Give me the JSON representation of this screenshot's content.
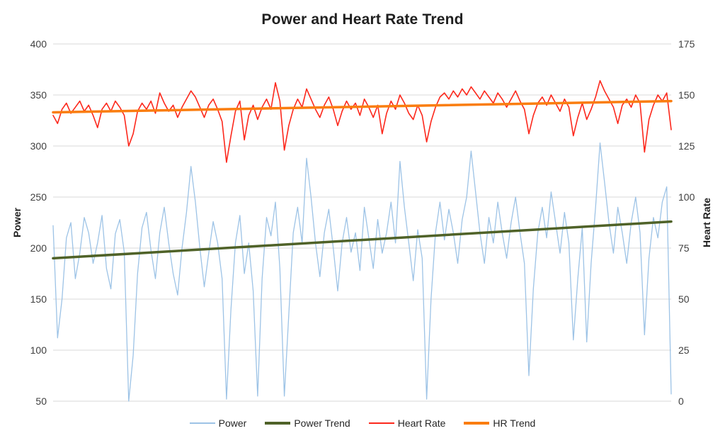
{
  "chart": {
    "title": "Power and Heart Rate Trend"
  },
  "chart_data": {
    "type": "line",
    "title": "Power and Heart Rate Trend",
    "grid": "horizontal",
    "grid_color": "#D9D9D9",
    "background_color": "#FFFFFF",
    "legend_position": "bottom",
    "left_axis": {
      "label": "Power",
      "range": [
        50,
        400
      ],
      "ticks": [
        400,
        350,
        300,
        250,
        200,
        150,
        100,
        50
      ]
    },
    "right_axis": {
      "label": "Heart Rate",
      "range": [
        0,
        175
      ],
      "ticks": [
        175,
        150,
        125,
        100,
        75,
        50,
        25,
        0
      ]
    },
    "x_axis": {
      "label": "",
      "ticks": []
    },
    "series": [
      {
        "name": "Power",
        "axis": "left",
        "color": "#9DC3E6",
        "stroke_width": 1.3,
        "kind": "data",
        "values": [
          222,
          112,
          150,
          210,
          225,
          170,
          195,
          230,
          215,
          185,
          205,
          232,
          180,
          160,
          214,
          228,
          196,
          50,
          95,
          175,
          220,
          235,
          198,
          170,
          215,
          240,
          205,
          175,
          154,
          200,
          235,
          280,
          245,
          200,
          162,
          195,
          226,
          205,
          170,
          52,
          140,
          205,
          232,
          175,
          205,
          158,
          55,
          170,
          230,
          212,
          245,
          180,
          55,
          135,
          215,
          240,
          205,
          288,
          250,
          205,
          172,
          215,
          238,
          200,
          158,
          205,
          230,
          196,
          215,
          178,
          240,
          210,
          180,
          228,
          195,
          215,
          245,
          205,
          285,
          240,
          205,
          168,
          218,
          190,
          52,
          150,
          215,
          245,
          208,
          238,
          215,
          185,
          228,
          250,
          295,
          255,
          215,
          185,
          230,
          205,
          245,
          215,
          190,
          225,
          250,
          215,
          185,
          75,
          160,
          215,
          240,
          210,
          255,
          225,
          195,
          235,
          205,
          110,
          170,
          220,
          108,
          185,
          240,
          303,
          265,
          225,
          195,
          240,
          215,
          185,
          225,
          250,
          215,
          115,
          190,
          230,
          210,
          245,
          260,
          57
        ]
      },
      {
        "name": "Power Trend",
        "axis": "left",
        "color": "#4F6228",
        "stroke_width": 3.5,
        "kind": "trend",
        "values": [
          190,
          226
        ]
      },
      {
        "name": "Heart Rate",
        "axis": "right",
        "color": "#FC281C",
        "stroke_width": 1.6,
        "kind": "data",
        "values": [
          140,
          136,
          143,
          146,
          141,
          144,
          147,
          142,
          145,
          140,
          134,
          143,
          146,
          142,
          147,
          144,
          140,
          125,
          131,
          142,
          146,
          143,
          147,
          141,
          151,
          146,
          142,
          145,
          139,
          144,
          148,
          152,
          149,
          144,
          139,
          145,
          148,
          143,
          137,
          117,
          130,
          142,
          147,
          128,
          140,
          145,
          138,
          144,
          148,
          143,
          156,
          147,
          123,
          135,
          143,
          148,
          144,
          153,
          148,
          143,
          139,
          145,
          149,
          143,
          135,
          142,
          147,
          143,
          146,
          140,
          148,
          144,
          139,
          145,
          131,
          141,
          147,
          143,
          150,
          146,
          141,
          138,
          145,
          140,
          127,
          137,
          144,
          149,
          151,
          148,
          152,
          149,
          153,
          150,
          154,
          151,
          148,
          152,
          149,
          146,
          151,
          148,
          144,
          148,
          152,
          147,
          143,
          131,
          140,
          146,
          149,
          145,
          150,
          146,
          142,
          148,
          144,
          130,
          139,
          146,
          138,
          143,
          149,
          157,
          152,
          148,
          144,
          136,
          145,
          148,
          144,
          150,
          146,
          122,
          138,
          145,
          150,
          147,
          151,
          133
        ]
      },
      {
        "name": "HR Trend",
        "axis": "right",
        "color": "#FA7D0F",
        "stroke_width": 3.5,
        "kind": "trend",
        "values": [
          141.5,
          147
        ]
      }
    ]
  }
}
